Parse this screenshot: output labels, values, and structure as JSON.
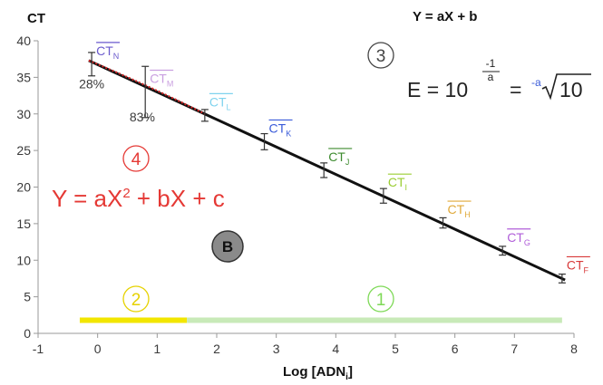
{
  "chart_data": {
    "type": "scatter",
    "ylabel": "CT",
    "xlabel_main": "Log [ADN",
    "xlabel_sub": "i",
    "xlabel_close": "]",
    "xlim": [
      -1,
      8
    ],
    "ylim": [
      0,
      40
    ],
    "x_ticks": [
      "-1",
      "0",
      "1",
      "2",
      "3",
      "4",
      "5",
      "6",
      "7",
      "8"
    ],
    "y_ticks": [
      "0",
      "5",
      "10",
      "15",
      "20",
      "25",
      "30",
      "35",
      "40"
    ],
    "points": [
      {
        "x": -0.1,
        "y": 36.8,
        "err": 1.6,
        "label": "CT",
        "sub": "N",
        "color": "#6a5acd"
      },
      {
        "x": 0.8,
        "y": 33.0,
        "err": 3.5,
        "label": "CT",
        "sub": "M",
        "color": "#c9a0e0"
      },
      {
        "x": 1.8,
        "y": 29.8,
        "err": 0.8,
        "label": "CT",
        "sub": "L",
        "color": "#7fd3ee"
      },
      {
        "x": 2.8,
        "y": 26.2,
        "err": 1.1,
        "label": "CT",
        "sub": "K",
        "color": "#3a5bd9"
      },
      {
        "x": 3.8,
        "y": 22.3,
        "err": 1.0,
        "label": "CT",
        "sub": "J",
        "color": "#3d8b2f"
      },
      {
        "x": 4.8,
        "y": 18.8,
        "err": 1.0,
        "label": "CT",
        "sub": "I",
        "color": "#9acd32"
      },
      {
        "x": 5.8,
        "y": 15.1,
        "err": 0.7,
        "label": "CT",
        "sub": "H",
        "color": "#e0a93a"
      },
      {
        "x": 6.8,
        "y": 11.3,
        "err": 0.6,
        "label": "CT",
        "sub": "G",
        "color": "#b05ed9"
      },
      {
        "x": 7.8,
        "y": 7.5,
        "err": 0.6,
        "label": "CT",
        "sub": "F",
        "color": "#d83a3a"
      }
    ],
    "linear_fit": {
      "x0": -0.15,
      "y0": 37.3,
      "x1": 7.85,
      "y1": 7.3,
      "color": "#111111"
    },
    "quadratic_fit": {
      "x0": -0.15,
      "y0": 37.3,
      "x1": 1.8,
      "y1": 30.0,
      "color": "#d62828"
    },
    "pct_labels": [
      {
        "text": "28%",
        "x": -0.1,
        "y": 33.5
      },
      {
        "text": "83%",
        "x": 0.75,
        "y": 29.0
      }
    ],
    "ranges": [
      {
        "id": "2",
        "x0": -0.3,
        "x1": 1.5,
        "y": 1.8,
        "color": "#f2e600",
        "label_color": "#e6d200"
      },
      {
        "id": "1",
        "x0": 1.5,
        "x1": 7.8,
        "y": 1.8,
        "color": "#c8eab8",
        "label_color": "#7ed957"
      }
    ]
  },
  "annotations": {
    "eq_linear": "Y = aX + b",
    "circle_3": "3",
    "eq_e_start": "E = 10",
    "eq_e_exp_num": "-1",
    "eq_e_exp_den": "a",
    "eq_e_eq": "=",
    "eq_e_root_idx": "-a",
    "eq_e_root_val": "10",
    "circle_4": "4",
    "eq_quad": "Y = aX",
    "eq_quad_sup": "2",
    "eq_quad_rest": " + bX + c",
    "badge_b": "B",
    "circle_2": "2",
    "circle_1": "1",
    "color_black": "#111111",
    "color_quad": "#e53935",
    "color_root_index": "#3a5bd9"
  }
}
